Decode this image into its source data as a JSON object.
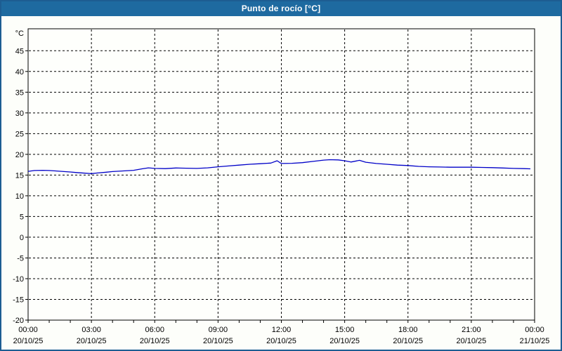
{
  "window": {
    "title": "Punto de rocío [°C]"
  },
  "colors": {
    "title_bar_bg": "#1e6aa0",
    "title_text": "#ffffff",
    "window_border": "#1d5d92",
    "window_bg": "#fdfefa",
    "plot_bg": "#fefffc",
    "plot_border": "#000000",
    "grid": "#000000",
    "tick_text": "#000000",
    "series_line": "#0000c8"
  },
  "chart_data": {
    "type": "line",
    "title": "Punto de rocío [°C]",
    "y_unit": "°C",
    "xlabel": "",
    "ylabel": "°C",
    "xlim": [
      0,
      24
    ],
    "ylim": [
      -20,
      50.3
    ],
    "grid": "dashed",
    "legend": "none",
    "y_ticks": [
      45,
      40,
      35,
      30,
      25,
      20,
      15,
      10,
      5,
      0,
      -5,
      -10,
      -15,
      -20
    ],
    "x_minor_tick_interval_hours": 1,
    "x_major_ticks": [
      {
        "hour": 0,
        "time": "00:00",
        "date": "20/10/25"
      },
      {
        "hour": 3,
        "time": "03:00",
        "date": "20/10/25"
      },
      {
        "hour": 6,
        "time": "06:00",
        "date": "20/10/25"
      },
      {
        "hour": 9,
        "time": "09:00",
        "date": "20/10/25"
      },
      {
        "hour": 12,
        "time": "12:00",
        "date": "20/10/25"
      },
      {
        "hour": 15,
        "time": "15:00",
        "date": "20/10/25"
      },
      {
        "hour": 18,
        "time": "18:00",
        "date": "20/10/25"
      },
      {
        "hour": 21,
        "time": "21:00",
        "date": "20/10/25"
      },
      {
        "hour": 24,
        "time": "00:00",
        "date": "21/10/25"
      }
    ],
    "series": [
      {
        "name": "Punto de rocío",
        "color": "#0000c8",
        "x_hours": [
          0,
          0.3,
          0.7,
          1,
          1.3,
          1.7,
          2,
          2.3,
          2.7,
          3,
          3.3,
          3.7,
          4,
          4.5,
          5,
          5.4,
          5.7,
          6,
          6.5,
          7,
          7.5,
          8,
          8.5,
          9,
          9.5,
          10,
          10.5,
          11,
          11.5,
          11.8,
          12,
          12.5,
          13,
          13.5,
          14,
          14.3,
          14.7,
          15,
          15.3,
          15.7,
          16,
          16.5,
          17,
          17.5,
          18,
          18.5,
          19,
          19.5,
          20,
          20.5,
          21,
          21.5,
          22,
          22.5,
          23,
          23.5,
          23.8
        ],
        "y_values": [
          15.9,
          16.1,
          16.15,
          16.1,
          16.0,
          15.85,
          15.75,
          15.6,
          15.45,
          15.35,
          15.5,
          15.7,
          15.85,
          16.0,
          16.15,
          16.5,
          16.75,
          16.6,
          16.55,
          16.7,
          16.65,
          16.6,
          16.75,
          17.0,
          17.2,
          17.4,
          17.6,
          17.75,
          17.9,
          18.45,
          17.8,
          17.85,
          18.0,
          18.3,
          18.6,
          18.7,
          18.65,
          18.45,
          18.15,
          18.55,
          18.1,
          17.8,
          17.6,
          17.4,
          17.3,
          17.1,
          17.0,
          16.95,
          16.9,
          16.9,
          16.9,
          16.85,
          16.8,
          16.7,
          16.6,
          16.55,
          16.5
        ]
      }
    ]
  }
}
